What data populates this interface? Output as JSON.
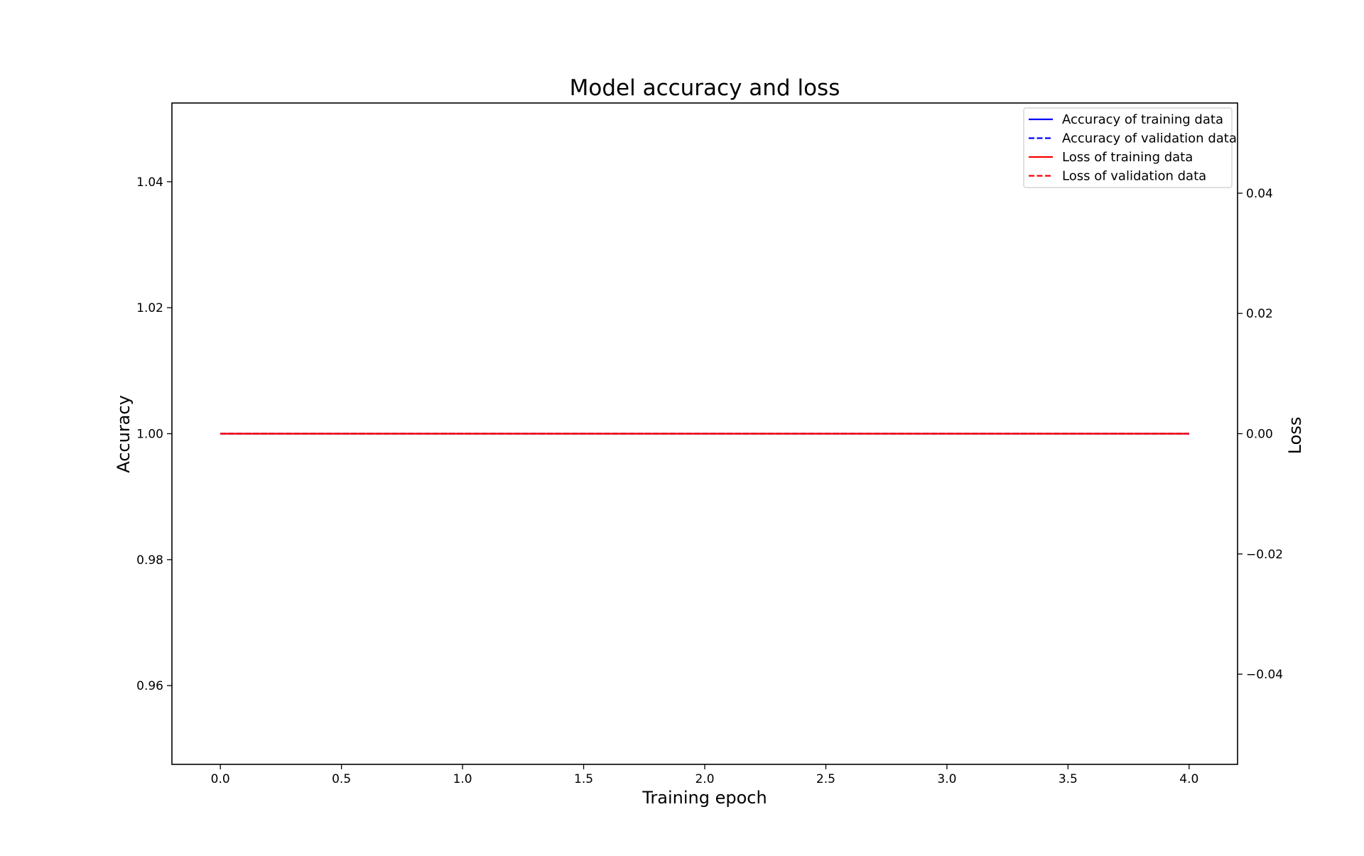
{
  "chart_data": {
    "type": "line",
    "title": "Model accuracy and loss",
    "xlabel": "Training epoch",
    "ylabel": "Accuracy",
    "y2label": "Loss",
    "xlim": [
      -0.2,
      4.2
    ],
    "ylim": [
      0.9475,
      1.0525
    ],
    "y2lim": [
      -0.055,
      0.055
    ],
    "x_ticks": [
      0.0,
      0.5,
      1.0,
      1.5,
      2.0,
      2.5,
      3.0,
      3.5,
      4.0
    ],
    "x_tick_labels": [
      "0.0",
      "0.5",
      "1.0",
      "1.5",
      "2.0",
      "2.5",
      "3.0",
      "3.5",
      "4.0"
    ],
    "y_ticks": [
      0.96,
      0.98,
      1.0,
      1.02,
      1.04
    ],
    "y_tick_labels": [
      "0.96",
      "0.98",
      "1.00",
      "1.02",
      "1.04"
    ],
    "y2_ticks": [
      -0.04,
      -0.02,
      0.0,
      0.02,
      0.04
    ],
    "y2_tick_labels": [
      "−0.04",
      "−0.02",
      "0.00",
      "0.02",
      "0.04"
    ],
    "grid": false,
    "legend_position": "top-right",
    "x": [
      0,
      1,
      2,
      3,
      4
    ],
    "series": [
      {
        "name": "Accuracy of training data",
        "axis": "left",
        "color": "#0000ff",
        "dash": "solid",
        "values": [
          1.0,
          1.0,
          1.0,
          1.0,
          1.0
        ]
      },
      {
        "name": "Accuracy of validation data",
        "axis": "left",
        "color": "#0000ff",
        "dash": "dashed",
        "values": [
          1.0,
          1.0,
          1.0,
          1.0,
          1.0
        ]
      },
      {
        "name": "Loss of training data",
        "axis": "right",
        "color": "#ff0000",
        "dash": "solid",
        "values": [
          0.0,
          0.0,
          0.0,
          0.0,
          0.0
        ]
      },
      {
        "name": "Loss of validation data",
        "axis": "right",
        "color": "#ff0000",
        "dash": "dashed",
        "values": [
          0.0,
          0.0,
          0.0,
          0.0,
          0.0
        ]
      }
    ]
  }
}
